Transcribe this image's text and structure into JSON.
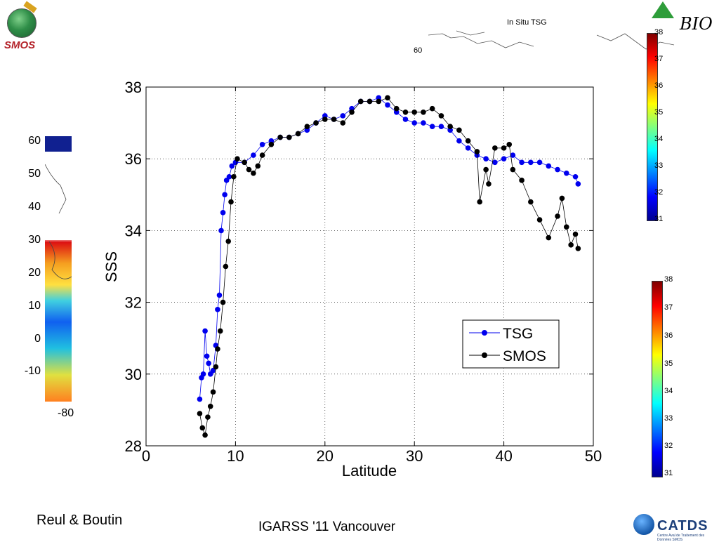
{
  "header": {
    "smos_logo_text": "SMOS",
    "bio_logo_text": "BIO",
    "insitu_label": "In Situ TSG",
    "top_lat_label": "60"
  },
  "left_map": {
    "y_ticks": [
      "60",
      "50",
      "40",
      "30",
      "20",
      "10",
      "0",
      "-10"
    ],
    "x_tick": "-80"
  },
  "colorbar_top": {
    "labels": [
      "38",
      "37",
      "36",
      "35",
      "34",
      "33",
      "32",
      "31"
    ]
  },
  "colorbar_bottom": {
    "labels": [
      "38",
      "37",
      "36",
      "35",
      "34",
      "33",
      "32",
      "31"
    ]
  },
  "footer": {
    "authors": "Reul  & Boutin",
    "conference": "IGARSS '11 Vancouver",
    "catds_text": "CATDS",
    "catds_sub": "Centre Aval de Traitement des Données SMOS"
  },
  "chart_data": {
    "type": "line",
    "title": "",
    "xlabel": "Latitude",
    "ylabel": "SSS",
    "xlim": [
      0,
      50
    ],
    "ylim": [
      28,
      38
    ],
    "x_ticks": [
      0,
      10,
      20,
      30,
      40,
      50
    ],
    "y_ticks": [
      28,
      30,
      32,
      34,
      36,
      38
    ],
    "grid": true,
    "legend_position": "lower-right",
    "series": [
      {
        "name": "TSG",
        "color": "#0000ee",
        "x": [
          6.0,
          6.2,
          6.4,
          6.6,
          6.8,
          7.0,
          7.2,
          7.5,
          7.8,
          8.0,
          8.2,
          8.4,
          8.6,
          8.8,
          9.0,
          9.3,
          9.6,
          10.0,
          11,
          12,
          13,
          14,
          15,
          16,
          17,
          18,
          19,
          20,
          21,
          22,
          23,
          24,
          25,
          26,
          27,
          28,
          29,
          30,
          31,
          32,
          33,
          34,
          35,
          36,
          37,
          38,
          39,
          40,
          41,
          42,
          43,
          44,
          45,
          46,
          47,
          48,
          48.3
        ],
        "y": [
          29.3,
          29.9,
          30.0,
          31.2,
          30.5,
          30.3,
          30.0,
          30.1,
          30.8,
          31.8,
          32.2,
          34.0,
          34.5,
          35.0,
          35.4,
          35.5,
          35.8,
          35.9,
          35.9,
          36.1,
          36.4,
          36.5,
          36.6,
          36.6,
          36.7,
          36.8,
          37.0,
          37.2,
          37.1,
          37.2,
          37.4,
          37.6,
          37.6,
          37.7,
          37.5,
          37.3,
          37.1,
          37.0,
          37.0,
          36.9,
          36.9,
          36.8,
          36.5,
          36.3,
          36.1,
          36.0,
          35.9,
          36.0,
          36.1,
          35.9,
          35.9,
          35.9,
          35.8,
          35.7,
          35.6,
          35.5,
          35.3
        ]
      },
      {
        "name": "SMOS",
        "color": "#000000",
        "x": [
          6.0,
          6.3,
          6.6,
          6.9,
          7.2,
          7.5,
          7.8,
          8.0,
          8.3,
          8.6,
          8.9,
          9.2,
          9.5,
          9.8,
          10.2,
          11,
          11.5,
          12,
          12.5,
          13,
          14,
          15,
          16,
          17,
          18,
          19,
          20,
          21,
          22,
          23,
          24,
          25,
          26,
          27,
          28,
          29,
          30,
          31,
          32,
          33,
          34,
          35,
          36,
          37,
          37.3,
          38,
          38.3,
          39,
          40,
          40.6,
          41,
          42,
          43,
          44,
          45,
          46,
          46.5,
          47,
          47.5,
          48,
          48.3
        ],
        "y": [
          28.9,
          28.5,
          28.3,
          28.8,
          29.1,
          29.5,
          30.2,
          30.7,
          31.2,
          32.0,
          33.0,
          33.7,
          34.8,
          35.5,
          36.0,
          35.9,
          35.7,
          35.6,
          35.8,
          36.1,
          36.4,
          36.6,
          36.6,
          36.7,
          36.9,
          37.0,
          37.1,
          37.1,
          37.0,
          37.3,
          37.6,
          37.6,
          37.6,
          37.7,
          37.4,
          37.3,
          37.3,
          37.3,
          37.4,
          37.2,
          36.9,
          36.8,
          36.5,
          36.2,
          34.8,
          35.7,
          35.3,
          36.3,
          36.3,
          36.4,
          35.7,
          35.4,
          34.8,
          34.3,
          33.8,
          34.4,
          34.9,
          34.1,
          33.6,
          33.9,
          33.5
        ]
      }
    ]
  }
}
